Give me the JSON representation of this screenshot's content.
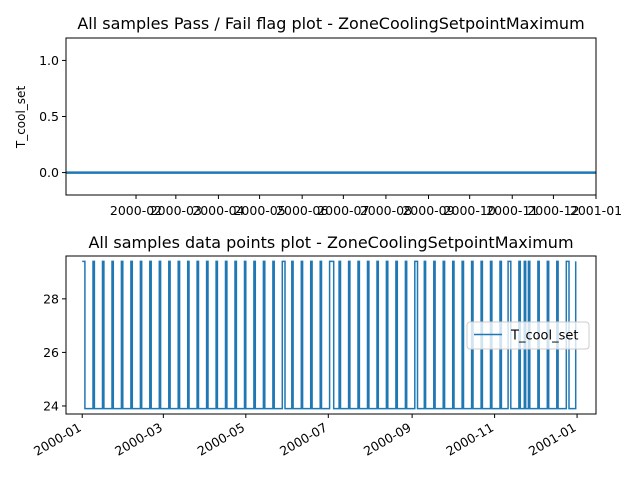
{
  "chart_data": [
    {
      "type": "line",
      "title": "All samples Pass / Fail flag plot - ZoneCoolingSetpointMaximum",
      "xlabel": "",
      "ylabel": "T_cool_set",
      "ylim": [
        -0.2,
        1.2
      ],
      "yticks": [
        "0.0",
        "0.5",
        "1.0"
      ],
      "xlim": [
        "1999-12-12",
        "2001-01-01"
      ],
      "xticks": [
        "2000-02",
        "2000-03",
        "2000-04",
        "2000-05",
        "2000-06",
        "2000-07",
        "2000-08",
        "2000-09",
        "2000-10",
        "2000-11",
        "2000-12",
        "2001-01"
      ],
      "x_tick_dates": [
        "2000-02-01",
        "2000-03-01",
        "2000-04-01",
        "2000-05-01",
        "2000-06-01",
        "2000-07-01",
        "2000-08-01",
        "2000-09-01",
        "2000-10-01",
        "2000-11-01",
        "2000-12-01",
        "2001-01-01"
      ],
      "series": [
        {
          "x": [
            "1999-12-12",
            "2001-01-01"
          ],
          "values": [
            0,
            0
          ],
          "color": "#1f77b4"
        }
      ],
      "grid": false,
      "legend": "none"
    },
    {
      "type": "line",
      "title": "All samples data points plot - ZoneCoolingSetpointMaximum",
      "xlabel": "",
      "ylabel": "",
      "ylim": [
        23.7,
        29.6
      ],
      "yticks": [
        "24",
        "26",
        "28"
      ],
      "xlim": [
        "1999-12-20",
        "2001-01-15"
      ],
      "xticks": [
        "2000-01",
        "2000-03",
        "2000-05",
        "2000-07",
        "2000-09",
        "2000-11",
        "2001-01"
      ],
      "x_tick_dates": [
        "2000-01-01",
        "2000-03-01",
        "2000-05-01",
        "2000-07-01",
        "2000-09-01",
        "2000-11-01",
        "2001-01-01"
      ],
      "low": 23.9,
      "high": 29.4,
      "high_periods": [
        [
          "2000-01-01",
          "2000-01-03"
        ],
        [
          "2000-01-09",
          "2000-01-10"
        ],
        [
          "2000-01-16",
          "2000-01-17"
        ],
        [
          "2000-01-23",
          "2000-01-24"
        ],
        [
          "2000-01-30",
          "2000-01-31"
        ],
        [
          "2000-02-06",
          "2000-02-07"
        ],
        [
          "2000-02-13",
          "2000-02-14"
        ],
        [
          "2000-02-20",
          "2000-02-21"
        ],
        [
          "2000-02-27",
          "2000-02-28"
        ],
        [
          "2000-03-05",
          "2000-03-06"
        ],
        [
          "2000-03-12",
          "2000-03-13"
        ],
        [
          "2000-03-19",
          "2000-03-20"
        ],
        [
          "2000-03-26",
          "2000-03-27"
        ],
        [
          "2000-04-02",
          "2000-04-03"
        ],
        [
          "2000-04-09",
          "2000-04-10"
        ],
        [
          "2000-04-16",
          "2000-04-17"
        ],
        [
          "2000-04-23",
          "2000-04-24"
        ],
        [
          "2000-04-30",
          "2000-05-01"
        ],
        [
          "2000-05-07",
          "2000-05-08"
        ],
        [
          "2000-05-14",
          "2000-05-15"
        ],
        [
          "2000-05-21",
          "2000-05-22"
        ],
        [
          "2000-05-28",
          "2000-05-30"
        ],
        [
          "2000-06-04",
          "2000-06-05"
        ],
        [
          "2000-06-11",
          "2000-06-12"
        ],
        [
          "2000-06-18",
          "2000-06-19"
        ],
        [
          "2000-06-25",
          "2000-06-26"
        ],
        [
          "2000-07-02",
          "2000-07-05"
        ],
        [
          "2000-07-09",
          "2000-07-10"
        ],
        [
          "2000-07-16",
          "2000-07-17"
        ],
        [
          "2000-07-23",
          "2000-07-24"
        ],
        [
          "2000-07-30",
          "2000-07-31"
        ],
        [
          "2000-08-06",
          "2000-08-07"
        ],
        [
          "2000-08-13",
          "2000-08-14"
        ],
        [
          "2000-08-20",
          "2000-08-21"
        ],
        [
          "2000-08-27",
          "2000-08-28"
        ],
        [
          "2000-09-03",
          "2000-09-05"
        ],
        [
          "2000-09-10",
          "2000-09-11"
        ],
        [
          "2000-09-17",
          "2000-09-18"
        ],
        [
          "2000-09-24",
          "2000-09-25"
        ],
        [
          "2000-10-01",
          "2000-10-02"
        ],
        [
          "2000-10-08",
          "2000-10-09"
        ],
        [
          "2000-10-15",
          "2000-10-16"
        ],
        [
          "2000-10-22",
          "2000-10-23"
        ],
        [
          "2000-10-29",
          "2000-10-30"
        ],
        [
          "2000-11-05",
          "2000-11-06"
        ],
        [
          "2000-11-11",
          "2000-11-13"
        ],
        [
          "2000-11-19",
          "2000-11-20"
        ],
        [
          "2000-11-23",
          "2000-11-24"
        ],
        [
          "2000-11-26",
          "2000-11-27"
        ],
        [
          "2000-12-03",
          "2000-12-04"
        ],
        [
          "2000-12-10",
          "2000-12-11"
        ],
        [
          "2000-12-17",
          "2000-12-18"
        ],
        [
          "2000-12-24",
          "2000-12-26"
        ],
        [
          "2000-12-31",
          "2000-12-31"
        ]
      ],
      "series": [
        {
          "name": "T_cool_set",
          "color": "#1f77b4"
        }
      ],
      "grid": false,
      "legend": "center-right"
    }
  ]
}
